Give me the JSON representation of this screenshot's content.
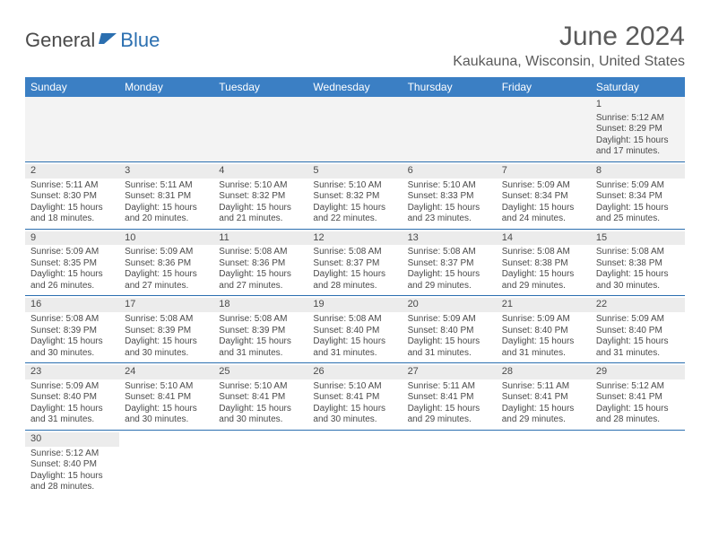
{
  "logo": {
    "text_dark": "General",
    "text_blue": "Blue"
  },
  "header": {
    "month_year": "June 2024",
    "location": "Kaukauna, Wisconsin, United States"
  },
  "colors": {
    "header_bg": "#3b7fc4",
    "header_text": "#ffffff",
    "row_border": "#2b6fb0",
    "daynum_bg": "#ececec",
    "first_row_bg": "#f3f3f3",
    "body_text": "#4a4a4a",
    "logo_dark": "#4a4a4a",
    "logo_blue": "#2b6fb0"
  },
  "typography": {
    "title_fontsize": 30,
    "location_fontsize": 16,
    "header_cell_fontsize": 12,
    "cell_fontsize": 10,
    "logo_fontsize": 22
  },
  "days_of_week": [
    "Sunday",
    "Monday",
    "Tuesday",
    "Wednesday",
    "Thursday",
    "Friday",
    "Saturday"
  ],
  "weeks": [
    [
      null,
      null,
      null,
      null,
      null,
      null,
      {
        "date": "1",
        "sunrise": "Sunrise: 5:12 AM",
        "sunset": "Sunset: 8:29 PM",
        "daylight1": "Daylight: 15 hours",
        "daylight2": "and 17 minutes."
      }
    ],
    [
      {
        "date": "2",
        "sunrise": "Sunrise: 5:11 AM",
        "sunset": "Sunset: 8:30 PM",
        "daylight1": "Daylight: 15 hours",
        "daylight2": "and 18 minutes."
      },
      {
        "date": "3",
        "sunrise": "Sunrise: 5:11 AM",
        "sunset": "Sunset: 8:31 PM",
        "daylight1": "Daylight: 15 hours",
        "daylight2": "and 20 minutes."
      },
      {
        "date": "4",
        "sunrise": "Sunrise: 5:10 AM",
        "sunset": "Sunset: 8:32 PM",
        "daylight1": "Daylight: 15 hours",
        "daylight2": "and 21 minutes."
      },
      {
        "date": "5",
        "sunrise": "Sunrise: 5:10 AM",
        "sunset": "Sunset: 8:32 PM",
        "daylight1": "Daylight: 15 hours",
        "daylight2": "and 22 minutes."
      },
      {
        "date": "6",
        "sunrise": "Sunrise: 5:10 AM",
        "sunset": "Sunset: 8:33 PM",
        "daylight1": "Daylight: 15 hours",
        "daylight2": "and 23 minutes."
      },
      {
        "date": "7",
        "sunrise": "Sunrise: 5:09 AM",
        "sunset": "Sunset: 8:34 PM",
        "daylight1": "Daylight: 15 hours",
        "daylight2": "and 24 minutes."
      },
      {
        "date": "8",
        "sunrise": "Sunrise: 5:09 AM",
        "sunset": "Sunset: 8:34 PM",
        "daylight1": "Daylight: 15 hours",
        "daylight2": "and 25 minutes."
      }
    ],
    [
      {
        "date": "9",
        "sunrise": "Sunrise: 5:09 AM",
        "sunset": "Sunset: 8:35 PM",
        "daylight1": "Daylight: 15 hours",
        "daylight2": "and 26 minutes."
      },
      {
        "date": "10",
        "sunrise": "Sunrise: 5:09 AM",
        "sunset": "Sunset: 8:36 PM",
        "daylight1": "Daylight: 15 hours",
        "daylight2": "and 27 minutes."
      },
      {
        "date": "11",
        "sunrise": "Sunrise: 5:08 AM",
        "sunset": "Sunset: 8:36 PM",
        "daylight1": "Daylight: 15 hours",
        "daylight2": "and 27 minutes."
      },
      {
        "date": "12",
        "sunrise": "Sunrise: 5:08 AM",
        "sunset": "Sunset: 8:37 PM",
        "daylight1": "Daylight: 15 hours",
        "daylight2": "and 28 minutes."
      },
      {
        "date": "13",
        "sunrise": "Sunrise: 5:08 AM",
        "sunset": "Sunset: 8:37 PM",
        "daylight1": "Daylight: 15 hours",
        "daylight2": "and 29 minutes."
      },
      {
        "date": "14",
        "sunrise": "Sunrise: 5:08 AM",
        "sunset": "Sunset: 8:38 PM",
        "daylight1": "Daylight: 15 hours",
        "daylight2": "and 29 minutes."
      },
      {
        "date": "15",
        "sunrise": "Sunrise: 5:08 AM",
        "sunset": "Sunset: 8:38 PM",
        "daylight1": "Daylight: 15 hours",
        "daylight2": "and 30 minutes."
      }
    ],
    [
      {
        "date": "16",
        "sunrise": "Sunrise: 5:08 AM",
        "sunset": "Sunset: 8:39 PM",
        "daylight1": "Daylight: 15 hours",
        "daylight2": "and 30 minutes."
      },
      {
        "date": "17",
        "sunrise": "Sunrise: 5:08 AM",
        "sunset": "Sunset: 8:39 PM",
        "daylight1": "Daylight: 15 hours",
        "daylight2": "and 30 minutes."
      },
      {
        "date": "18",
        "sunrise": "Sunrise: 5:08 AM",
        "sunset": "Sunset: 8:39 PM",
        "daylight1": "Daylight: 15 hours",
        "daylight2": "and 31 minutes."
      },
      {
        "date": "19",
        "sunrise": "Sunrise: 5:08 AM",
        "sunset": "Sunset: 8:40 PM",
        "daylight1": "Daylight: 15 hours",
        "daylight2": "and 31 minutes."
      },
      {
        "date": "20",
        "sunrise": "Sunrise: 5:09 AM",
        "sunset": "Sunset: 8:40 PM",
        "daylight1": "Daylight: 15 hours",
        "daylight2": "and 31 minutes."
      },
      {
        "date": "21",
        "sunrise": "Sunrise: 5:09 AM",
        "sunset": "Sunset: 8:40 PM",
        "daylight1": "Daylight: 15 hours",
        "daylight2": "and 31 minutes."
      },
      {
        "date": "22",
        "sunrise": "Sunrise: 5:09 AM",
        "sunset": "Sunset: 8:40 PM",
        "daylight1": "Daylight: 15 hours",
        "daylight2": "and 31 minutes."
      }
    ],
    [
      {
        "date": "23",
        "sunrise": "Sunrise: 5:09 AM",
        "sunset": "Sunset: 8:40 PM",
        "daylight1": "Daylight: 15 hours",
        "daylight2": "and 31 minutes."
      },
      {
        "date": "24",
        "sunrise": "Sunrise: 5:10 AM",
        "sunset": "Sunset: 8:41 PM",
        "daylight1": "Daylight: 15 hours",
        "daylight2": "and 30 minutes."
      },
      {
        "date": "25",
        "sunrise": "Sunrise: 5:10 AM",
        "sunset": "Sunset: 8:41 PM",
        "daylight1": "Daylight: 15 hours",
        "daylight2": "and 30 minutes."
      },
      {
        "date": "26",
        "sunrise": "Sunrise: 5:10 AM",
        "sunset": "Sunset: 8:41 PM",
        "daylight1": "Daylight: 15 hours",
        "daylight2": "and 30 minutes."
      },
      {
        "date": "27",
        "sunrise": "Sunrise: 5:11 AM",
        "sunset": "Sunset: 8:41 PM",
        "daylight1": "Daylight: 15 hours",
        "daylight2": "and 29 minutes."
      },
      {
        "date": "28",
        "sunrise": "Sunrise: 5:11 AM",
        "sunset": "Sunset: 8:41 PM",
        "daylight1": "Daylight: 15 hours",
        "daylight2": "and 29 minutes."
      },
      {
        "date": "29",
        "sunrise": "Sunrise: 5:12 AM",
        "sunset": "Sunset: 8:41 PM",
        "daylight1": "Daylight: 15 hours",
        "daylight2": "and 28 minutes."
      }
    ],
    [
      {
        "date": "30",
        "sunrise": "Sunrise: 5:12 AM",
        "sunset": "Sunset: 8:40 PM",
        "daylight1": "Daylight: 15 hours",
        "daylight2": "and 28 minutes."
      },
      null,
      null,
      null,
      null,
      null,
      null
    ]
  ]
}
